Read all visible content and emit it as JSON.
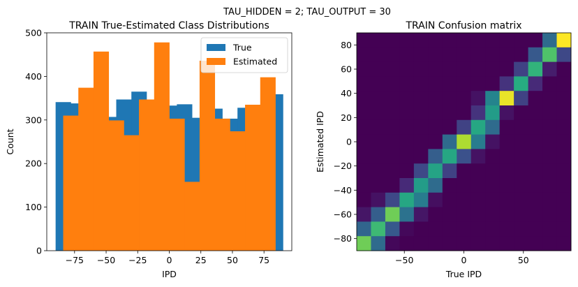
{
  "suptitle": "TAU_HIDDEN = 2; TAU_OUTPUT = 30",
  "chart_data": [
    {
      "type": "bar",
      "title": "TRAIN True-Estimated Class Distributions",
      "xlabel": "IPD",
      "ylabel": "Count",
      "xlim": [
        -97,
        97
      ],
      "ylim": [
        0,
        500
      ],
      "xticks": [
        -75,
        -50,
        -25,
        0,
        25,
        50,
        75
      ],
      "xtick_labels": [
        "−75",
        "−50",
        "−25",
        "0",
        "25",
        "50",
        "75"
      ],
      "yticks": [
        0,
        100,
        200,
        300,
        400,
        500
      ],
      "ytick_labels": [
        "0",
        "100",
        "200",
        "300",
        "400",
        "500"
      ],
      "legend_position": "top-right",
      "bin_edges": [
        -90,
        -78,
        -66,
        -54,
        -42,
        -30,
        -18,
        -6,
        6,
        18,
        30,
        42,
        54,
        66,
        78,
        90
      ],
      "series": [
        {
          "name": "True",
          "color": "#1f77b4",
          "bin_edges": [
            -90,
            -78,
            -66,
            -54,
            -42,
            -30,
            -18,
            -6,
            6,
            18,
            30,
            42,
            54,
            66,
            78,
            90
          ],
          "values": [
            341,
            338,
            318,
            307,
            347,
            365,
            342,
            333,
            336,
            305,
            326,
            303,
            328,
            334,
            359
          ]
        },
        {
          "name": "Estimated",
          "color": "#ff7f0e",
          "bin_edges": [
            -84,
            -72,
            -60,
            -48,
            -36,
            -24,
            -12,
            0,
            12,
            24,
            36,
            48,
            60,
            72,
            84
          ],
          "values": [
            310,
            374,
            457,
            299,
            265,
            347,
            478,
            303,
            158,
            436,
            303,
            274,
            335,
            398
          ]
        }
      ]
    },
    {
      "type": "heatmap",
      "title": "TRAIN Confusion matrix",
      "xlabel": "True IPD",
      "ylabel": "Estimated IPD",
      "extent": [
        -90,
        90,
        -90,
        90
      ],
      "xticks": [
        -50,
        0,
        50
      ],
      "xtick_labels": [
        "−50",
        "0",
        "50"
      ],
      "yticks": [
        -80,
        -60,
        -40,
        -20,
        0,
        20,
        40,
        60,
        80
      ],
      "ytick_labels": [
        "−80",
        "−60",
        "−40",
        "−20",
        "0",
        "20",
        "40",
        "60",
        "80"
      ],
      "colormap": "viridis",
      "rows_top_to_bottom": [
        [
          0,
          0,
          0,
          0,
          0,
          0,
          0,
          0,
          0,
          0,
          0,
          0,
          0,
          0.35,
          1.0
        ],
        [
          0,
          0,
          0,
          0,
          0,
          0,
          0,
          0,
          0,
          0,
          0,
          0,
          0.28,
          0.72,
          0.22
        ],
        [
          0,
          0,
          0,
          0,
          0,
          0,
          0,
          0,
          0,
          0,
          0,
          0.2,
          0.65,
          0.08,
          0
        ],
        [
          0,
          0,
          0,
          0,
          0,
          0,
          0,
          0,
          0,
          0,
          0.15,
          0.62,
          0.12,
          0,
          0
        ],
        [
          0,
          0,
          0,
          0,
          0,
          0,
          0,
          0,
          0.05,
          0.45,
          0.97,
          0.2,
          0,
          0,
          0
        ],
        [
          0,
          0,
          0,
          0,
          0,
          0,
          0,
          0,
          0.15,
          0.55,
          0.05,
          0,
          0,
          0,
          0
        ],
        [
          0,
          0,
          0,
          0,
          0,
          0,
          0,
          0.2,
          0.6,
          0.35,
          0,
          0,
          0,
          0,
          0
        ],
        [
          0,
          0,
          0,
          0,
          0,
          0,
          0.35,
          0.88,
          0.42,
          0.05,
          0,
          0,
          0,
          0,
          0
        ],
        [
          0,
          0,
          0,
          0,
          0,
          0.3,
          0.6,
          0.25,
          0.05,
          0,
          0,
          0,
          0,
          0,
          0
        ],
        [
          0,
          0,
          0,
          0,
          0.22,
          0.58,
          0.2,
          0,
          0,
          0,
          0,
          0,
          0,
          0,
          0
        ],
        [
          0,
          0,
          0,
          0.12,
          0.55,
          0.35,
          0,
          0,
          0,
          0,
          0,
          0,
          0,
          0,
          0
        ],
        [
          0,
          0.05,
          0.22,
          0.6,
          0.42,
          0.04,
          0,
          0,
          0,
          0,
          0,
          0,
          0,
          0,
          0
        ],
        [
          0.06,
          0.3,
          0.78,
          0.38,
          0.06,
          0,
          0,
          0,
          0,
          0,
          0,
          0,
          0,
          0,
          0
        ],
        [
          0.33,
          0.68,
          0.28,
          0.02,
          0,
          0,
          0,
          0,
          0,
          0,
          0,
          0,
          0,
          0,
          0
        ],
        [
          0.78,
          0.35,
          0.02,
          0,
          0,
          0,
          0,
          0,
          0,
          0,
          0,
          0,
          0,
          0,
          0
        ]
      ]
    }
  ]
}
